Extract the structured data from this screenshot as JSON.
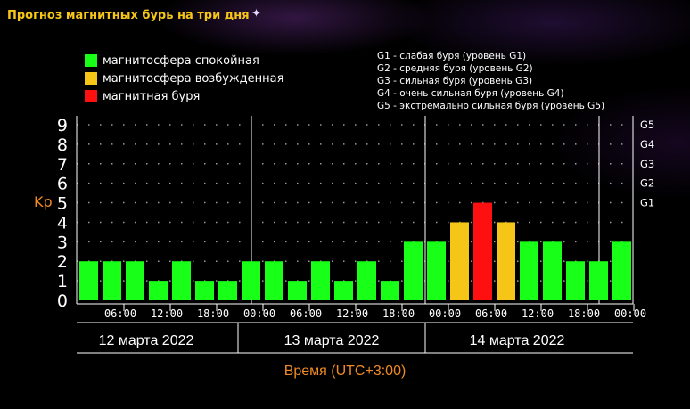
{
  "title": "Прогноз магнитных бурь на три дня",
  "legend": [
    {
      "label": "магнитосфера спокойная",
      "color": "#18ff18"
    },
    {
      "label": "магнитосфера возбужденная",
      "color": "#f5c518"
    },
    {
      "label": "магнитная буря",
      "color": "#ff1010"
    }
  ],
  "storm_levels": [
    "G1 - слабая буря (уровень G1)",
    "G2 - средняя буря (уровень G2)",
    "G3 - сильная буря (уровень G3)",
    "G4 - очень сильная буря (уровень G4)",
    "G5 - экстремально сильная буря (уровень G5)"
  ],
  "chart_data": {
    "type": "bar",
    "ylabel": "Kp",
    "xlabel": "Время (UTC+3:00)",
    "ylim": [
      0,
      9
    ],
    "y_ticks": [
      "0",
      "1",
      "2",
      "3",
      "4",
      "5",
      "6",
      "7",
      "8",
      "9"
    ],
    "right_ticks": [
      {
        "kp": 5,
        "label": "G1"
      },
      {
        "kp": 6,
        "label": "G2"
      },
      {
        "kp": 7,
        "label": "G3"
      },
      {
        "kp": 8,
        "label": "G4"
      },
      {
        "kp": 9,
        "label": "G5"
      }
    ],
    "x_ticks": [
      "06:00",
      "12:00",
      "18:00",
      "00:00",
      "06:00",
      "12:00",
      "18:00",
      "00:00",
      "06:00",
      "12:00",
      "18:00",
      "00:00"
    ],
    "days": [
      "12 марта 2022",
      "13 марта 2022",
      "14 марта 2022"
    ],
    "grid": "dotted",
    "colors": {
      "quiet": "#18ff18",
      "active": "#f5c518",
      "storm": "#ff1010"
    },
    "values": [
      2,
      2,
      2,
      1,
      2,
      1,
      1,
      2,
      2,
      1,
      2,
      1,
      2,
      1,
      3,
      3,
      4,
      5,
      4,
      3,
      3,
      2,
      2,
      3
    ],
    "levels": [
      "quiet",
      "quiet",
      "quiet",
      "quiet",
      "quiet",
      "quiet",
      "quiet",
      "quiet",
      "quiet",
      "quiet",
      "quiet",
      "quiet",
      "quiet",
      "quiet",
      "quiet",
      "quiet",
      "active",
      "storm",
      "active",
      "quiet",
      "quiet",
      "quiet",
      "quiet",
      "quiet"
    ]
  }
}
